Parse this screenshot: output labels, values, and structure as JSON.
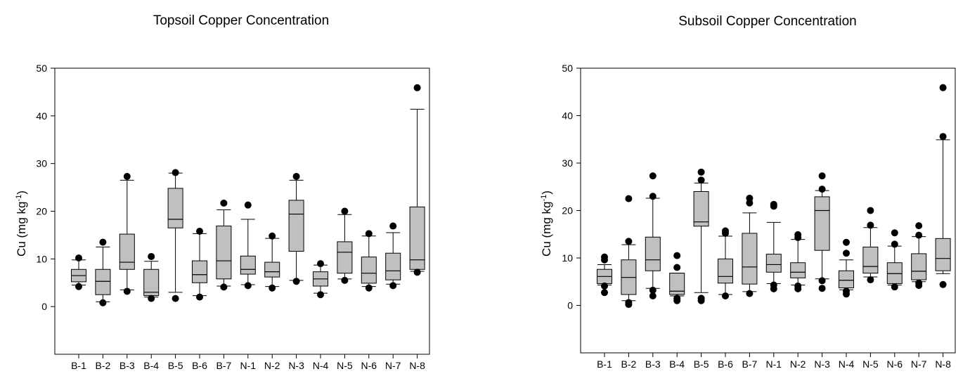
{
  "chart_data": [
    {
      "type": "box",
      "title": "Topsoil Copper Concentration",
      "ylabel_main": "Cu (mg kg",
      "ylabel_sup": "-1",
      "ylabel_close": ")",
      "ylim": [
        -10,
        50
      ],
      "yticks": [
        0,
        10,
        20,
        30,
        40,
        50
      ],
      "categories": [
        "B-1",
        "B-2",
        "B-3",
        "B-4",
        "B-5",
        "B-6",
        "B-7",
        "N-1",
        "N-2",
        "N-3",
        "N-4",
        "N-5",
        "N-6",
        "N-7",
        "N-8"
      ],
      "boxes": [
        {
          "whislo": 4.5,
          "q1": 5.2,
          "med": 6.5,
          "q3": 7.8,
          "whishi": 9.8,
          "fliers": [
            4.2,
            10.2
          ]
        },
        {
          "whislo": 1.0,
          "q1": 2.5,
          "med": 5.3,
          "q3": 7.8,
          "whishi": 12.5,
          "fliers": [
            0.8,
            13.5
          ]
        },
        {
          "whislo": 3.5,
          "q1": 7.8,
          "med": 9.3,
          "q3": 15.2,
          "whishi": 26.5,
          "fliers": [
            3.2,
            27.3
          ]
        },
        {
          "whislo": 2.0,
          "q1": 2.3,
          "med": 3.0,
          "q3": 7.8,
          "whishi": 9.5,
          "fliers": [
            1.7,
            10.5
          ]
        },
        {
          "whislo": 3.0,
          "q1": 16.5,
          "med": 18.3,
          "q3": 24.8,
          "whishi": 28.0,
          "fliers": [
            1.7,
            28.1
          ]
        },
        {
          "whislo": 2.3,
          "q1": 5.0,
          "med": 6.7,
          "q3": 9.6,
          "whishi": 15.3,
          "fliers": [
            2.0,
            15.8
          ]
        },
        {
          "whislo": 4.3,
          "q1": 5.8,
          "med": 9.6,
          "q3": 16.9,
          "whishi": 20.3,
          "fliers": [
            4.1,
            21.7
          ]
        },
        {
          "whislo": 4.6,
          "q1": 6.8,
          "med": 7.8,
          "q3": 10.6,
          "whishi": 18.3,
          "fliers": [
            4.4,
            21.3
          ]
        },
        {
          "whislo": 4.2,
          "q1": 6.2,
          "med": 7.3,
          "q3": 9.3,
          "whishi": 14.3,
          "fliers": [
            3.9,
            14.8
          ]
        },
        {
          "whislo": 5.5,
          "q1": 11.6,
          "med": 19.4,
          "q3": 22.3,
          "whishi": 26.5,
          "fliers": [
            5.3,
            27.3
          ]
        },
        {
          "whislo": 2.8,
          "q1": 4.3,
          "med": 5.8,
          "q3": 7.3,
          "whishi": 8.7,
          "fliers": [
            2.5,
            9.0
          ]
        },
        {
          "whislo": 5.8,
          "q1": 7.0,
          "med": 11.4,
          "q3": 13.6,
          "whishi": 19.3,
          "fliers": [
            5.5,
            20.0
          ]
        },
        {
          "whislo": 4.2,
          "q1": 4.9,
          "med": 7.0,
          "q3": 10.4,
          "whishi": 14.8,
          "fliers": [
            3.9,
            15.3
          ]
        },
        {
          "whislo": 4.7,
          "q1": 5.6,
          "med": 7.5,
          "q3": 11.2,
          "whishi": 15.5,
          "fliers": [
            4.4,
            16.9
          ]
        },
        {
          "whislo": 7.4,
          "q1": 7.8,
          "med": 9.8,
          "q3": 20.9,
          "whishi": 41.4,
          "fliers": [
            7.2,
            45.9
          ]
        }
      ]
    },
    {
      "type": "box",
      "title": "Subsoil Copper Concentration",
      "ylabel_main": "Cu (mg kg",
      "ylabel_sup": "-1",
      "ylabel_close": ")",
      "ylim": [
        -10,
        50
      ],
      "yticks": [
        0,
        10,
        20,
        30,
        40,
        50
      ],
      "categories": [
        "B-1",
        "B-2",
        "B-3",
        "B-4",
        "B-5",
        "B-6",
        "B-7",
        "N-1",
        "N-2",
        "N-3",
        "N-4",
        "N-5",
        "N-6",
        "N-7",
        "N-8"
      ],
      "boxes": [
        {
          "whislo": 4.3,
          "q1": 4.6,
          "med": 6.1,
          "q3": 7.6,
          "whishi": 8.6,
          "fliers": [
            2.7,
            4.1,
            9.6,
            10.2
          ]
        },
        {
          "whislo": 1.0,
          "q1": 2.3,
          "med": 5.9,
          "q3": 9.6,
          "whishi": 12.8,
          "fliers": [
            0.2,
            0.6,
            13.5,
            22.5
          ]
        },
        {
          "whislo": 3.6,
          "q1": 7.3,
          "med": 9.6,
          "q3": 14.4,
          "whishi": 22.6,
          "fliers": [
            2.0,
            3.2,
            23.0,
            27.3
          ]
        },
        {
          "whislo": 2.0,
          "q1": 2.3,
          "med": 3.0,
          "q3": 6.8,
          "whishi": 6.8,
          "fliers": [
            1.0,
            1.5,
            8.0,
            10.5
          ]
        },
        {
          "whislo": 2.7,
          "q1": 16.7,
          "med": 17.6,
          "q3": 24.0,
          "whishi": 25.8,
          "fliers": [
            1.0,
            1.5,
            26.4,
            28.1
          ]
        },
        {
          "whislo": 2.3,
          "q1": 4.7,
          "med": 6.1,
          "q3": 9.8,
          "whishi": 14.6,
          "fliers": [
            2.0,
            15.2,
            15.7
          ]
        },
        {
          "whislo": 2.9,
          "q1": 4.5,
          "med": 8.1,
          "q3": 15.2,
          "whishi": 19.5,
          "fliers": [
            2.5,
            21.6,
            22.6
          ]
        },
        {
          "whislo": 4.6,
          "q1": 7.0,
          "med": 8.6,
          "q3": 10.8,
          "whishi": 17.5,
          "fliers": [
            3.5,
            4.3,
            20.9,
            21.3
          ]
        },
        {
          "whislo": 4.3,
          "q1": 5.8,
          "med": 7.0,
          "q3": 9.0,
          "whishi": 13.9,
          "fliers": [
            3.5,
            4.1,
            14.3,
            14.9
          ]
        },
        {
          "whislo": 5.6,
          "q1": 11.6,
          "med": 20.0,
          "q3": 22.9,
          "whishi": 24.2,
          "fliers": [
            3.6,
            5.2,
            24.5,
            27.3
          ]
        },
        {
          "whislo": 3.3,
          "q1": 3.7,
          "med": 5.3,
          "q3": 7.3,
          "whishi": 9.6,
          "fliers": [
            2.4,
            3.0,
            11.0,
            13.3
          ]
        },
        {
          "whislo": 6.0,
          "q1": 6.8,
          "med": 8.2,
          "q3": 12.3,
          "whishi": 16.4,
          "fliers": [
            5.4,
            16.9,
            20.0
          ]
        },
        {
          "whislo": 4.3,
          "q1": 4.6,
          "med": 6.7,
          "q3": 9.0,
          "whishi": 12.5,
          "fliers": [
            3.9,
            12.9,
            15.3
          ]
        },
        {
          "whislo": 5.0,
          "q1": 5.4,
          "med": 7.2,
          "q3": 10.9,
          "whishi": 14.5,
          "fliers": [
            4.2,
            4.7,
            14.8,
            16.8
          ]
        },
        {
          "whislo": 6.7,
          "q1": 7.3,
          "med": 9.9,
          "q3": 14.1,
          "whishi": 34.9,
          "fliers": [
            4.4,
            35.6,
            45.9
          ]
        }
      ]
    }
  ]
}
